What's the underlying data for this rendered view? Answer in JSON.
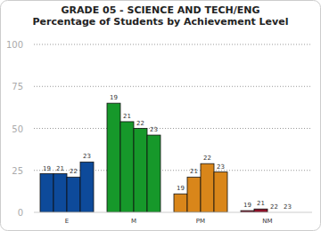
{
  "chart_data": {
    "type": "bar",
    "title": "GRADE 05 - SCIENCE AND TECH/ENG",
    "subtitle": "Percentage of Students by Achievement Level",
    "categories": [
      "E",
      "M",
      "PM",
      "NM"
    ],
    "colors": [
      "#0d4a9a",
      "#16982a",
      "#d9861a",
      "#8c1028"
    ],
    "series": [
      {
        "name": "19",
        "values": [
          23,
          65,
          11,
          1
        ]
      },
      {
        "name": "21",
        "values": [
          23,
          54,
          21,
          2
        ]
      },
      {
        "name": "22",
        "values": [
          21,
          50,
          29,
          0
        ]
      },
      {
        "name": "23",
        "values": [
          30,
          46,
          24,
          0
        ]
      }
    ],
    "ylim": [
      0,
      100
    ],
    "yticks": [
      0,
      25,
      50,
      75,
      100
    ],
    "grid": true
  }
}
